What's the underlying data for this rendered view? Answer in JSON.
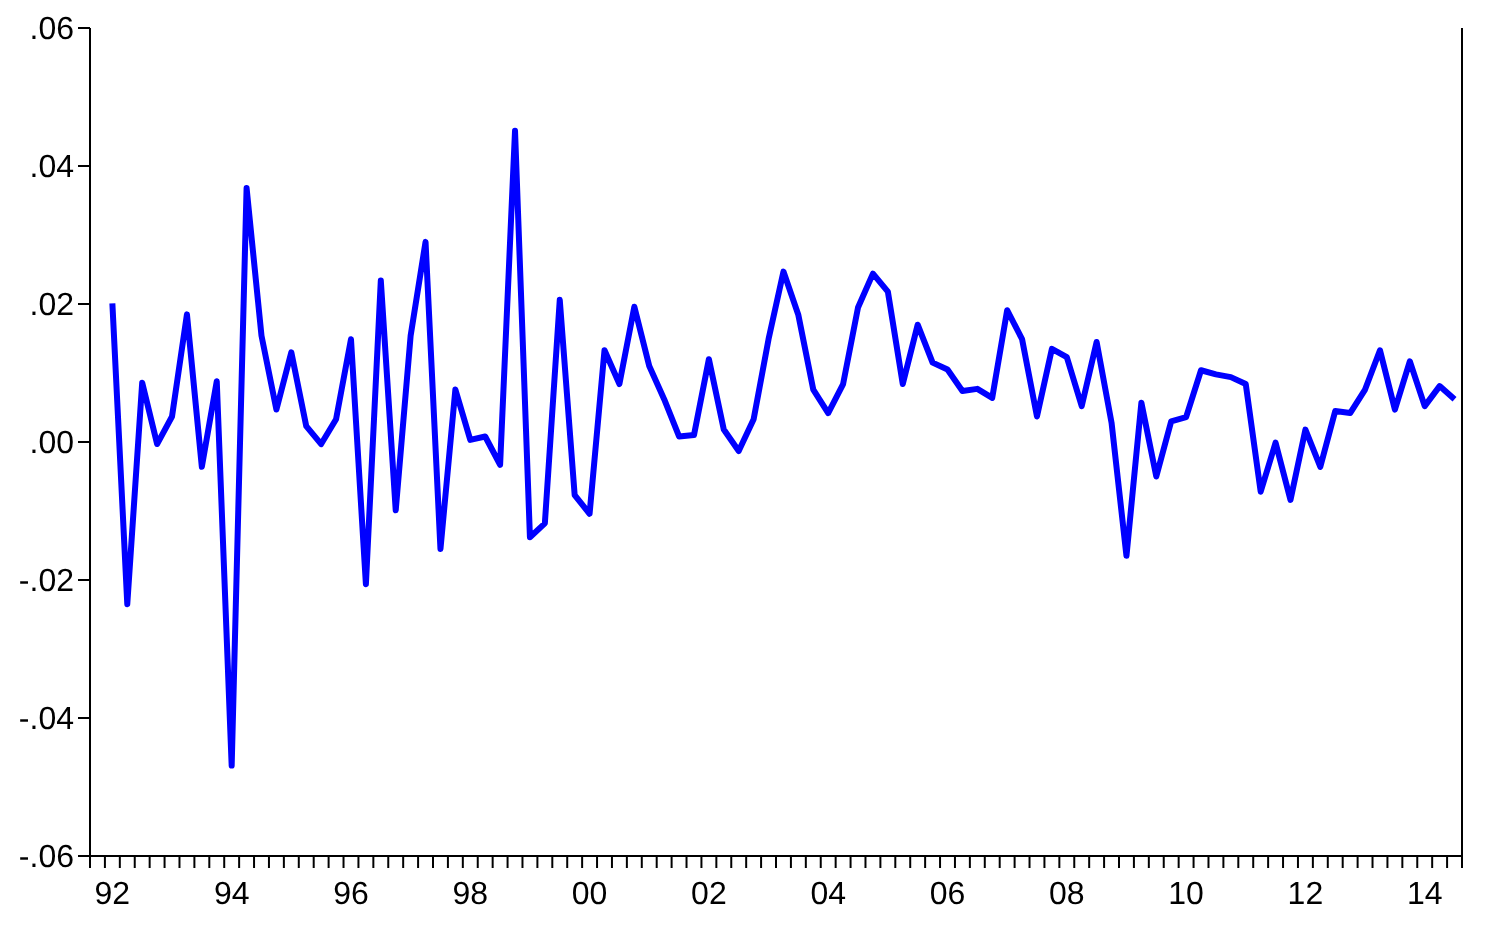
{
  "chart_data": {
    "type": "line",
    "categories": [
      null,
      "92",
      null,
      null,
      null,
      null,
      null,
      null,
      null,
      "94",
      null,
      null,
      null,
      null,
      null,
      null,
      null,
      "96",
      null,
      null,
      null,
      null,
      null,
      null,
      null,
      "98",
      null,
      null,
      null,
      null,
      null,
      null,
      null,
      "00",
      null,
      null,
      null,
      null,
      null,
      null,
      null,
      "02",
      null,
      null,
      null,
      null,
      null,
      null,
      null,
      "04",
      null,
      null,
      null,
      null,
      null,
      null,
      null,
      "06",
      null,
      null,
      null,
      null,
      null,
      null,
      null,
      "08",
      null,
      null,
      null,
      null,
      null,
      null,
      null,
      "10",
      null,
      null,
      null,
      null,
      null,
      null,
      null,
      "12",
      null,
      null,
      null,
      null,
      null,
      null,
      null,
      "14",
      null,
      null
    ],
    "ylim": [
      -0.06,
      0.06
    ],
    "yticks": [
      {
        "value": -0.06,
        "label": "-.06"
      },
      {
        "value": -0.04,
        "label": "-.04"
      },
      {
        "value": -0.02,
        "label": "-.02"
      },
      {
        "value": 0,
        "label": ".00"
      },
      {
        "value": 0.02,
        "label": ".02"
      },
      {
        "value": 0.04,
        "label": ".04"
      },
      {
        "value": 0.06,
        "label": ".06"
      }
    ],
    "marker": "none",
    "line_style": "solid",
    "series": [
      {
        "color": "#0000ff",
        "values": [
          null,
          0.0201,
          -0.0235,
          0.0086,
          -0.0003,
          0.0037,
          0.0185,
          -0.0036,
          0.0088,
          -0.0469,
          0.0368,
          0.0154,
          0.0047,
          0.013,
          0.0023,
          -0.0003,
          0.0033,
          0.0149,
          -0.0206,
          0.0234,
          -0.0099,
          0.0154,
          0.029,
          -0.0155,
          0.0076,
          0.0003,
          0.0008,
          -0.0033,
          0.0451,
          -0.0138,
          -0.0118,
          0.0206,
          -0.0077,
          -0.0104,
          0.0133,
          0.0084,
          0.0196,
          0.011,
          0.0062,
          0.0008,
          0.001,
          0.012,
          0.0018,
          -0.0013,
          0.0033,
          0.0149,
          0.0247,
          0.0184,
          0.0076,
          0.0042,
          0.0084,
          0.0195,
          0.0244,
          0.0218,
          0.0084,
          0.017,
          0.0115,
          0.0105,
          0.0074,
          0.0077,
          0.0064,
          0.0191,
          0.0149,
          0.0037,
          0.0135,
          0.0123,
          0.0052,
          0.0145,
          0.0028,
          -0.0165,
          0.0057,
          -0.005,
          0.003,
          0.0036,
          0.0104,
          0.0098,
          0.0094,
          0.0084,
          -0.0072,
          -0.0001,
          -0.0084,
          0.0018,
          -0.0036,
          0.0045,
          0.0042,
          0.0076,
          0.0133,
          0.0047,
          0.0117,
          0.0052,
          0.0081,
          0.0062
        ]
      }
    ]
  }
}
